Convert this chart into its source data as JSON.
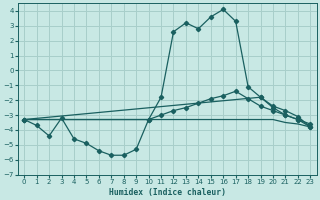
{
  "xlabel": "Humidex (Indice chaleur)",
  "xlim": [
    -0.5,
    23.5
  ],
  "ylim": [
    -7,
    4.5
  ],
  "xticks": [
    0,
    1,
    2,
    3,
    4,
    5,
    6,
    7,
    8,
    9,
    10,
    11,
    12,
    13,
    14,
    15,
    16,
    17,
    18,
    19,
    20,
    21,
    22,
    23
  ],
  "yticks": [
    -7,
    -6,
    -5,
    -4,
    -3,
    -2,
    -1,
    0,
    1,
    2,
    3,
    4
  ],
  "background_color": "#c8e8e4",
  "grid_color": "#a8ceca",
  "line_color": "#1a6060",
  "line1_x": [
    0,
    1,
    2,
    3,
    4,
    5,
    6,
    7,
    8,
    9,
    10,
    11,
    12,
    13,
    14,
    15,
    16,
    17,
    18,
    19,
    20,
    21,
    22,
    23
  ],
  "line1_y": [
    -3.3,
    -3.7,
    -4.4,
    -3.2,
    -4.6,
    -4.9,
    -5.4,
    -5.7,
    -5.7,
    -5.3,
    -3.3,
    -1.8,
    2.6,
    3.2,
    2.8,
    3.6,
    4.1,
    3.3,
    -1.1,
    -1.8,
    -2.5,
    -3.0,
    -3.3,
    -3.8
  ],
  "line2_x": [
    0,
    1,
    2,
    3,
    4,
    5,
    6,
    7,
    8,
    9,
    10,
    11,
    12,
    13,
    14,
    15,
    16,
    17,
    18,
    19,
    20,
    21,
    22,
    23
  ],
  "line2_y": [
    -3.3,
    -3.3,
    -3.3,
    -3.3,
    -3.3,
    -3.3,
    -3.3,
    -3.3,
    -3.3,
    -3.3,
    -3.3,
    -3.3,
    -3.3,
    -3.3,
    -3.3,
    -3.3,
    -3.3,
    -3.3,
    -3.3,
    -3.3,
    -3.3,
    -3.5,
    -3.6,
    -3.8
  ],
  "line3_x": [
    0,
    19,
    20,
    21,
    22,
    23
  ],
  "line3_y": [
    -3.3,
    -1.8,
    -2.4,
    -2.7,
    -3.1,
    -3.8
  ],
  "line4_x": [
    0,
    10,
    11,
    12,
    13,
    14,
    15,
    16,
    17,
    18,
    19,
    20,
    21,
    22,
    23
  ],
  "line4_y": [
    -3.3,
    -3.3,
    -3.0,
    -2.7,
    -2.5,
    -2.2,
    -1.9,
    -1.7,
    -1.4,
    -1.9,
    -2.4,
    -2.7,
    -3.0,
    -3.3,
    -3.6
  ]
}
